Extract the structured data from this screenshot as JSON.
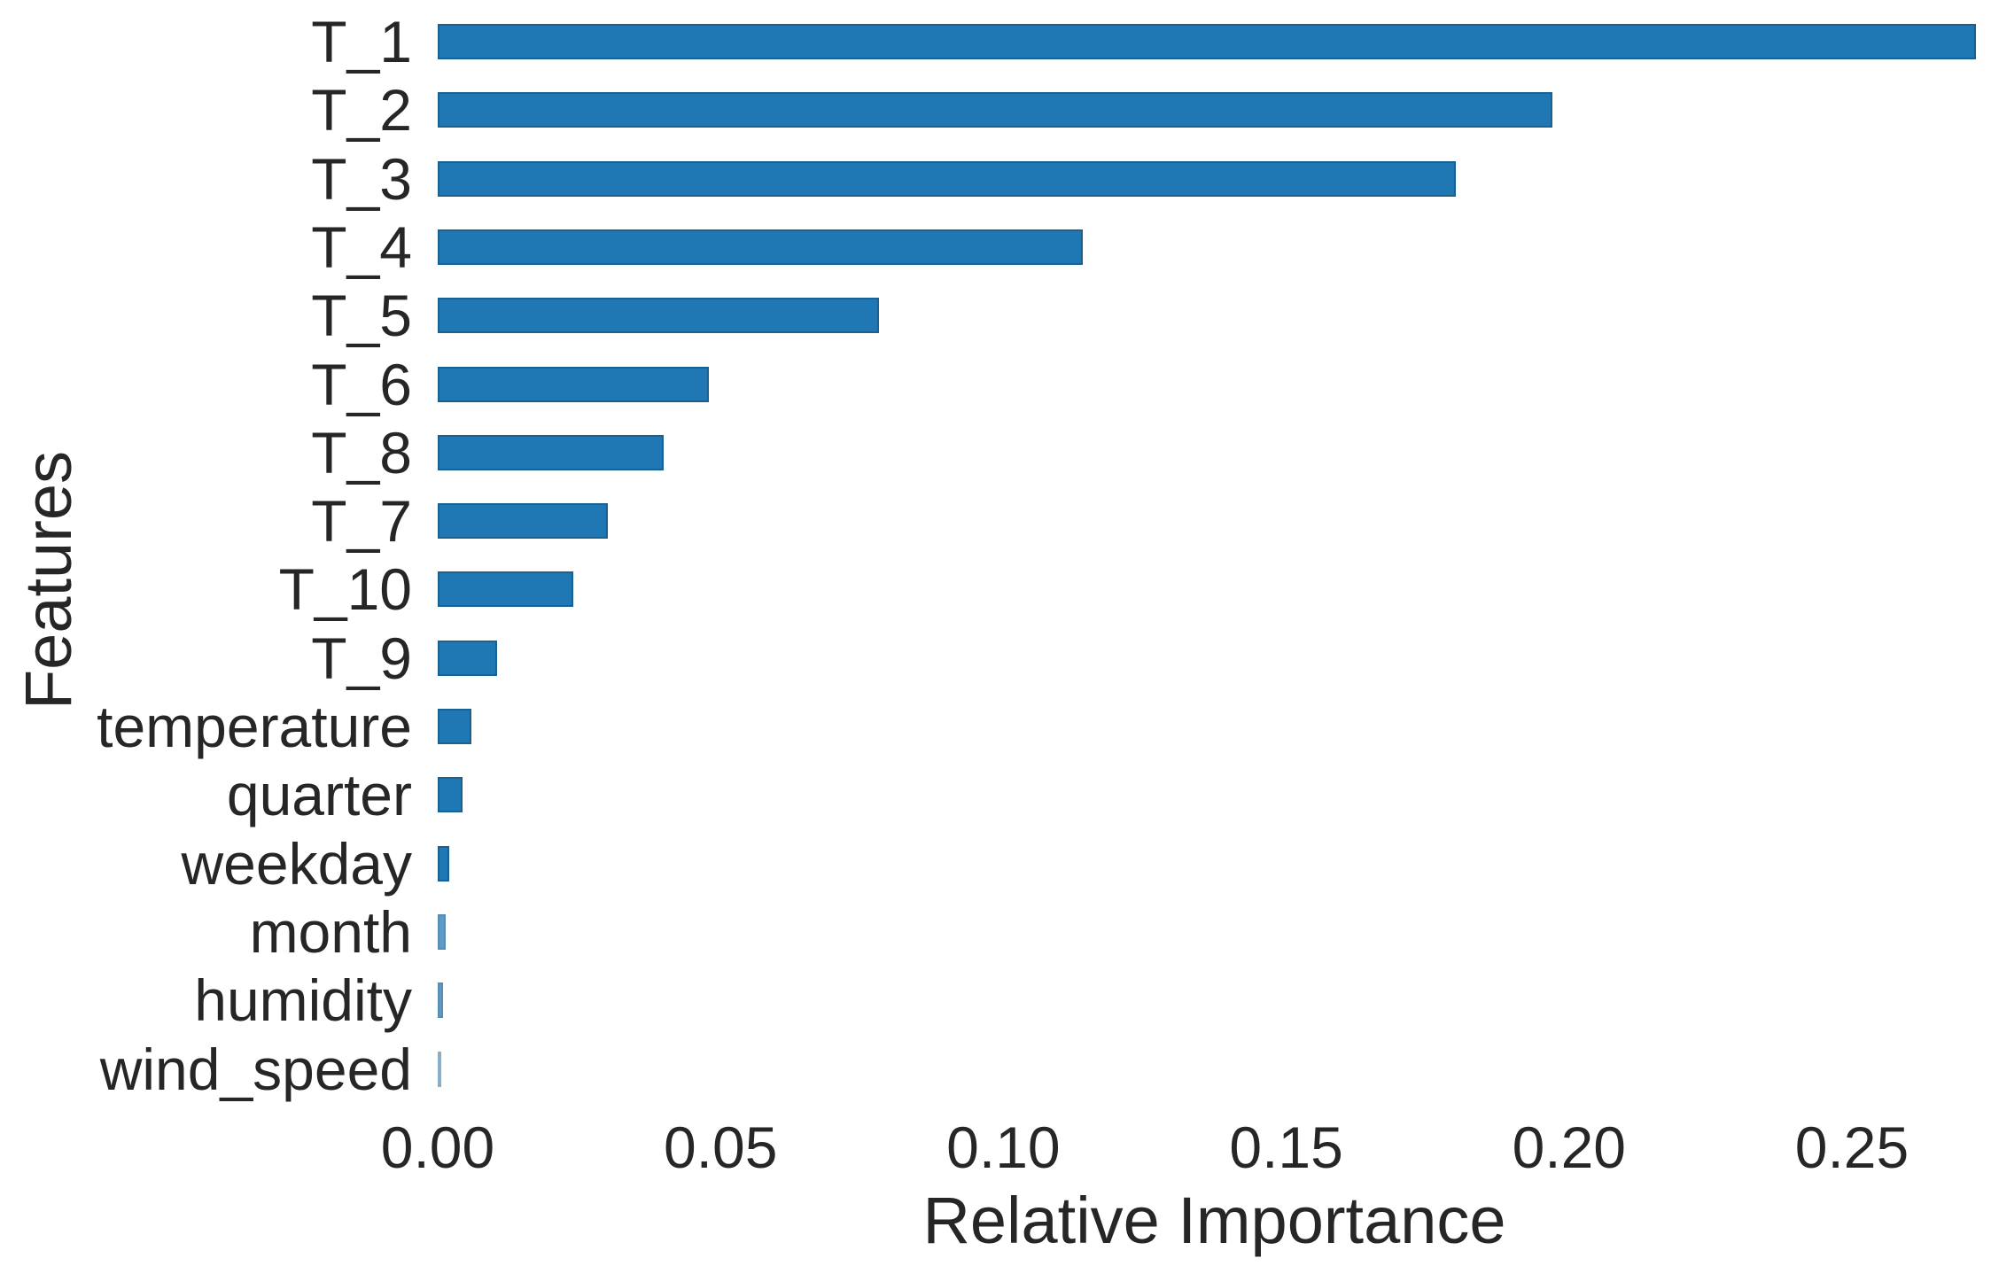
{
  "chart_data": {
    "type": "bar",
    "orientation": "horizontal",
    "title": "",
    "xlabel": "Relative Importance",
    "ylabel": "Features",
    "categories": [
      "T_1",
      "T_2",
      "T_3",
      "T_4",
      "T_5",
      "T_6",
      "T_8",
      "T_7",
      "T_10",
      "T_9",
      "temperature",
      "quarter",
      "weekday",
      "month",
      "humidity",
      "wind_speed"
    ],
    "values": [
      0.272,
      0.197,
      0.18,
      0.114,
      0.078,
      0.048,
      0.04,
      0.03,
      0.024,
      0.0105,
      0.006,
      0.0044,
      0.002,
      0.0014,
      0.001,
      0.0007
    ],
    "xticks": {
      "values": [
        0.0,
        0.05,
        0.1,
        0.15,
        0.2,
        0.25
      ],
      "labels": [
        "0.00",
        "0.05",
        "0.10",
        "0.15",
        "0.20",
        "0.25"
      ]
    },
    "xlim": [
      0,
      0.2746
    ],
    "grid": false,
    "legend": null,
    "bar_color": "#1f77b4",
    "text_color": "#262626",
    "background": "#ffffff"
  }
}
